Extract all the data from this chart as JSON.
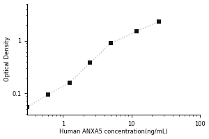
{
  "x": [
    0.3,
    0.6,
    1.25,
    2.5,
    5.0,
    12.0,
    25.0
  ],
  "y": [
    0.055,
    0.095,
    0.16,
    0.38,
    0.9,
    1.5,
    2.3
  ],
  "xlabel": "Human ANXA5 concentration(ng/mL)",
  "ylabel": "Optical Density",
  "xlim_log": [
    -0.52,
    2
  ],
  "ylim_log": [
    -1.4,
    0.7
  ],
  "line_color": "#bbbbbb",
  "marker_color": "#111111",
  "marker_size": 4,
  "background_color": "#ffffff",
  "label_fontsize": 6,
  "tick_fontsize": 6,
  "xticks": [
    1,
    10,
    100
  ],
  "yticks": [
    0.1,
    1
  ]
}
